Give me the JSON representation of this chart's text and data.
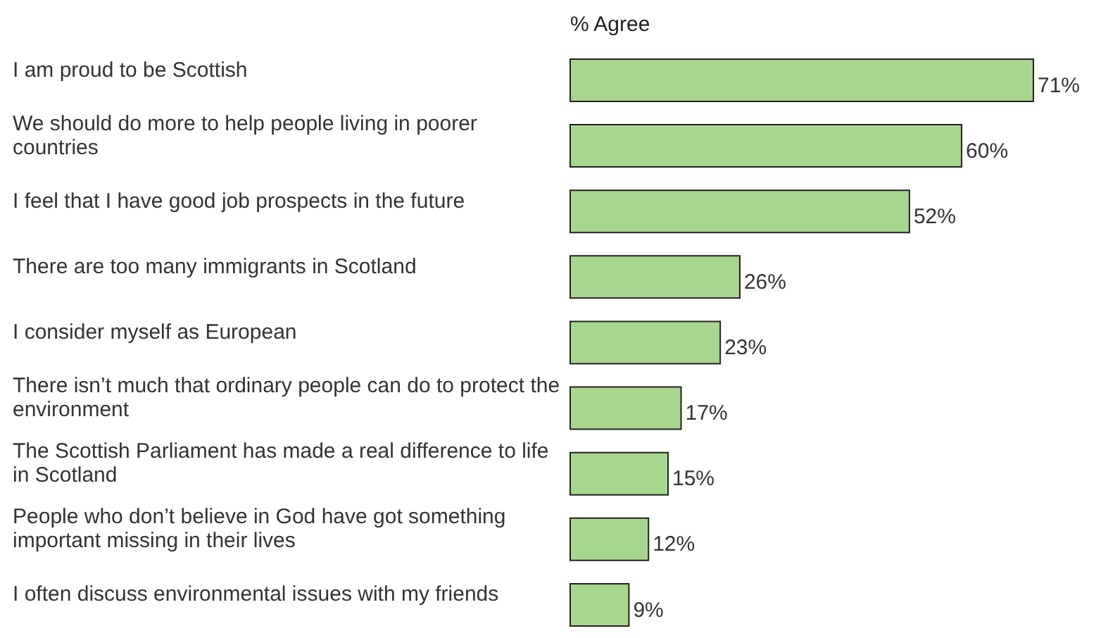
{
  "chart_data": {
    "type": "bar",
    "orientation": "horizontal",
    "title": "% Agree",
    "categories": [
      "I am proud to be Scottish",
      "We should do more to help people living in poorer countries",
      "I feel that I have good job prospects in the future",
      "There are too many immigrants in Scotland",
      "I consider myself as European",
      "There isn’t much that ordinary people can do to protect the environment",
      "The Scottish Parliament has made a real difference to life in Scotland",
      "People who don’t believe in God have got something important missing in their lives",
      "I often discuss environmental issues with my friends"
    ],
    "values": [
      71,
      60,
      52,
      26,
      23,
      17,
      15,
      12,
      9
    ],
    "value_labels": [
      "71%",
      "60%",
      "52%",
      "26%",
      "23%",
      "17%",
      "15%",
      "12%",
      "9%"
    ],
    "color": "#a8d68e",
    "tick_labels": "y"
  }
}
